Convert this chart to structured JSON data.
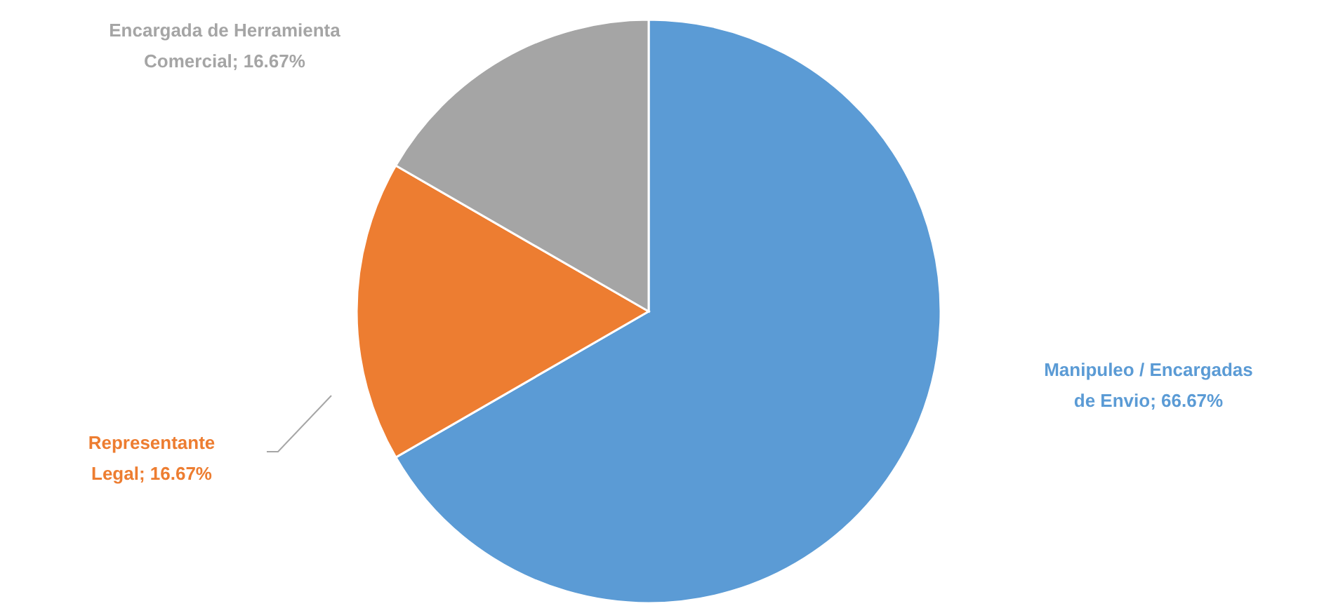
{
  "chart_data": {
    "type": "pie",
    "categories": [
      "Manipuleo / Encargadas de Envio",
      "Representante Legal",
      "Encargada de Herramienta Comercial"
    ],
    "values": [
      66.67,
      16.67,
      16.67
    ],
    "value_labels": [
      "66.67%",
      "16.67%",
      "16.67%"
    ],
    "colors": [
      "#5b9bd5",
      "#ed7d31",
      "#a5a5a5"
    ]
  }
}
